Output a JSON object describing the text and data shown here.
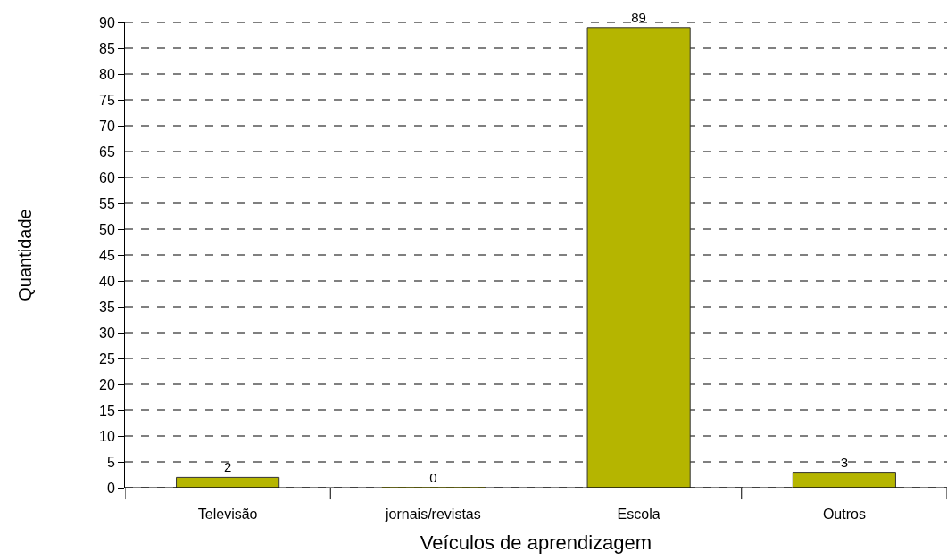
{
  "chart_data": {
    "type": "bar",
    "xlabel": "Veículos de aprendizagem",
    "ylabel": "Quantidade",
    "categories": [
      "Televisão",
      "jornais/revistas",
      "Escola",
      "Outros"
    ],
    "values": [
      2,
      0,
      89,
      3
    ],
    "color": "#b5b500",
    "ylim": [
      0,
      90
    ],
    "yticks": [
      0,
      5,
      10,
      15,
      20,
      25,
      30,
      35,
      40,
      45,
      50,
      55,
      60,
      65,
      70,
      75,
      80,
      85,
      90
    ],
    "grid": "y",
    "data_labels": true
  }
}
